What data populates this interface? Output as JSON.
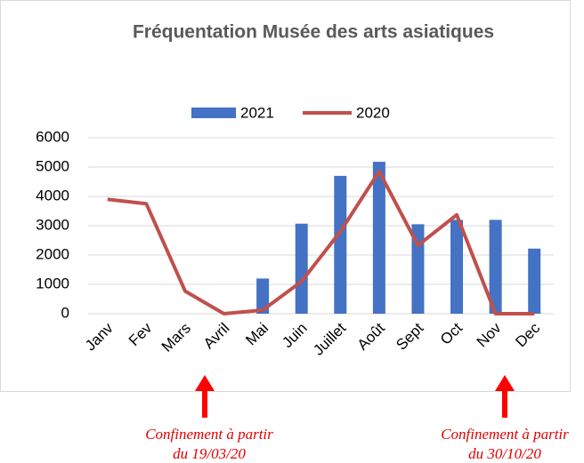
{
  "chart_data": {
    "type": "bar-line",
    "title": "Fréquentation Musée des arts asiatiques",
    "categories": [
      "Janv",
      "Fev",
      "Mars",
      "Avril",
      "Mai",
      "Juin",
      "Juillet",
      "Août",
      "Sept",
      "Oct",
      "Nov",
      "Dec"
    ],
    "series": [
      {
        "name": "2021",
        "type": "bar",
        "color": "#4472c4",
        "values": [
          null,
          null,
          null,
          null,
          1200,
          3070,
          4700,
          5180,
          3050,
          3200,
          3200,
          2220
        ]
      },
      {
        "name": "2020",
        "type": "line",
        "color": "#c0504d",
        "values": [
          3900,
          3750,
          770,
          0,
          120,
          1100,
          2800,
          4850,
          2330,
          3370,
          0,
          0
        ]
      }
    ],
    "ylim": [
      0,
      6000
    ],
    "yticks": [
      0,
      1000,
      2000,
      3000,
      4000,
      5000,
      6000
    ],
    "grid": true,
    "legend": "top",
    "annotations": [
      {
        "lines": [
          "Confinement à partir",
          "du 19/03/20"
        ]
      },
      {
        "lines": [
          "Confinement à partir",
          "du 30/10/20"
        ]
      }
    ]
  }
}
